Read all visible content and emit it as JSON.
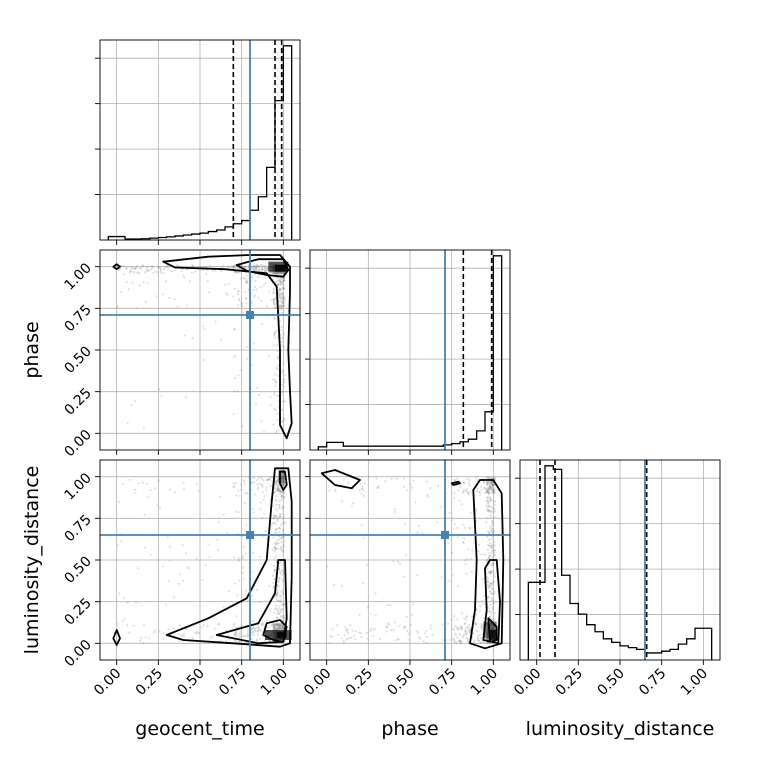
{
  "chart_data": {
    "type": "corner",
    "parameters": [
      "geocent_time",
      "phase",
      "luminosity_distance"
    ],
    "axis_range": [
      -0.1,
      1.1
    ],
    "ticks": [
      0.0,
      0.25,
      0.5,
      0.75,
      1.0
    ],
    "tick_labels": [
      "0.00",
      "0.25",
      "0.50",
      "0.75",
      "1.00"
    ],
    "grid": true,
    "truths": {
      "geocent_time": 0.8,
      "phase": 0.71,
      "luminosity_distance": 0.65
    },
    "truth_color": "#4682b4",
    "histogram_color": "#000000",
    "scatter_color": "#888888",
    "quantiles": {
      "geocent_time": [
        0.7,
        0.95,
        0.99
      ],
      "phase": [
        0.82,
        0.99
      ],
      "luminosity_distance": [
        0.02,
        0.11,
        0.66
      ]
    },
    "histograms": {
      "geocent_time": {
        "edges": [
          -0.05,
          0.0,
          0.05,
          0.1,
          0.15,
          0.2,
          0.25,
          0.3,
          0.35,
          0.4,
          0.45,
          0.5,
          0.55,
          0.6,
          0.65,
          0.7,
          0.75,
          0.8,
          0.85,
          0.9,
          0.95,
          1.0,
          1.05
        ],
        "counts": [
          1.1,
          1.1,
          0.3,
          0.3,
          0.4,
          0.6,
          0.8,
          1.0,
          1.3,
          1.6,
          1.9,
          2.2,
          2.7,
          3.2,
          4.2,
          5.2,
          6.2,
          9.5,
          13.8,
          23.2,
          44.5,
          62.0
        ]
      },
      "phase": {
        "edges": [
          -0.05,
          0.0,
          0.05,
          0.1,
          0.15,
          0.2,
          0.25,
          0.3,
          0.35,
          0.4,
          0.45,
          0.5,
          0.55,
          0.6,
          0.65,
          0.7,
          0.75,
          0.8,
          0.85,
          0.9,
          0.95,
          1.0,
          1.05
        ],
        "counts": [
          0.5,
          1.2,
          1.2,
          0.6,
          0.6,
          0.6,
          0.6,
          0.6,
          0.6,
          0.6,
          0.6,
          0.6,
          0.6,
          0.6,
          0.6,
          0.8,
          1.0,
          1.3,
          1.7,
          3.0,
          6.0,
          30.5
        ]
      },
      "luminosity_distance": {
        "edges": [
          -0.05,
          0.0,
          0.05,
          0.1,
          0.15,
          0.2,
          0.25,
          0.3,
          0.35,
          0.4,
          0.45,
          0.5,
          0.55,
          0.6,
          0.65,
          0.7,
          0.75,
          0.8,
          0.85,
          0.9,
          0.95,
          1.0,
          1.05
        ],
        "counts": [
          2.2,
          2.2,
          5.5,
          5.4,
          2.4,
          1.6,
          1.3,
          1.0,
          0.8,
          0.6,
          0.5,
          0.4,
          0.35,
          0.3,
          0.2,
          0.2,
          0.25,
          0.3,
          0.45,
          0.6,
          0.9,
          0.9
        ]
      }
    },
    "panels_2d": [
      {
        "x": "geocent_time",
        "y": "phase"
      },
      {
        "x": "geocent_time",
        "y": "luminosity_distance"
      },
      {
        "x": "phase",
        "y": "luminosity_distance"
      }
    ]
  }
}
